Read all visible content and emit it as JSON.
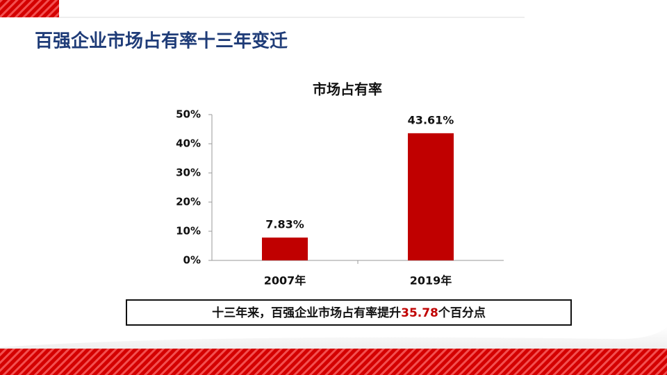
{
  "slide_title": "百强企业市场占有率十三年变迁",
  "chart_data": {
    "type": "bar",
    "title": "市场占有率",
    "categories": [
      "2007年",
      "2019年"
    ],
    "values": [
      7.83,
      43.61
    ],
    "value_labels": [
      "7.83%",
      "43.61%"
    ],
    "color": "#c00000",
    "ylim": [
      0,
      50
    ],
    "yticks": [
      {
        "value": 0,
        "label": "0%"
      },
      {
        "value": 10,
        "label": "10%"
      },
      {
        "value": 20,
        "label": "20%"
      },
      {
        "value": 30,
        "label": "30%"
      },
      {
        "value": 40,
        "label": "40%"
      },
      {
        "value": 50,
        "label": "50%"
      }
    ],
    "grid": false
  },
  "note": {
    "before": "十三年来，百强企业市场占有率提升",
    "highlight": "35.78",
    "after": "个百分点"
  }
}
